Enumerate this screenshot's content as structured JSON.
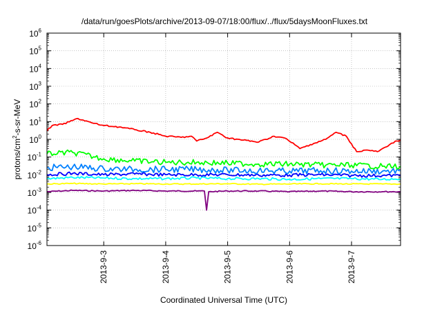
{
  "chart_data": {
    "type": "line",
    "title": "/data/run/goesPlots/archive/2013-09-07/18:00/flux/../flux/5daysMoonFluxes.txt",
    "xlabel": "Coordinated Universal Time (UTC)",
    "ylabel_parts": {
      "a": "protons/cm",
      "b": "2",
      "c": "-s-sr-MeV"
    },
    "x_range": [
      "2013-09-02T02:00",
      "2013-09-07T19:00"
    ],
    "x_ticks": [
      {
        "value": "2013-09-03T00:00",
        "label": "2013-9-3"
      },
      {
        "value": "2013-09-04T00:00",
        "label": "2013-9-4"
      },
      {
        "value": "2013-09-05T00:00",
        "label": "2013-9-5"
      },
      {
        "value": "2013-09-06T00:00",
        "label": "2013-9-6"
      },
      {
        "value": "2013-09-07T00:00",
        "label": "2013-9-7"
      }
    ],
    "y_scale": "log",
    "ylim": [
      1e-06,
      1000000.0
    ],
    "y_ticks": [
      {
        "value": 1e-06,
        "base": "10",
        "exp": "-6"
      },
      {
        "value": 1e-05,
        "base": "10",
        "exp": "-5"
      },
      {
        "value": 0.0001,
        "base": "10",
        "exp": "-4"
      },
      {
        "value": 0.001,
        "base": "10",
        "exp": "-3"
      },
      {
        "value": 0.01,
        "base": "10",
        "exp": "-2"
      },
      {
        "value": 0.1,
        "base": "10",
        "exp": "-1"
      },
      {
        "value": 1,
        "base": "10",
        "exp": "0"
      },
      {
        "value": 10,
        "base": "10",
        "exp": "1"
      },
      {
        "value": 100,
        "base": "10",
        "exp": "2"
      },
      {
        "value": 1000,
        "base": "10",
        "exp": "3"
      },
      {
        "value": 10000,
        "base": "10",
        "exp": "4"
      },
      {
        "value": 100000,
        "base": "10",
        "exp": "5"
      },
      {
        "value": 1000000,
        "base": "10",
        "exp": "6"
      }
    ],
    "grid": true,
    "legend": "none",
    "series": [
      {
        "color": "#800080",
        "points": [
          [
            "2013-09-02T02:00",
            0.0011
          ],
          [
            "2013-09-02T12:00",
            0.0013
          ],
          [
            "2013-09-03T00:00",
            0.0012
          ],
          [
            "2013-09-03T12:00",
            0.0013
          ],
          [
            "2013-09-04T00:00",
            0.0012
          ],
          [
            "2013-09-04T12:00",
            0.0012
          ],
          [
            "2013-09-04T15:00",
            0.0012
          ],
          [
            "2013-09-04T15:50",
            0.0001
          ],
          [
            "2013-09-04T16:40",
            0.0011
          ],
          [
            "2013-09-05T00:00",
            0.0012
          ],
          [
            "2013-09-05T12:00",
            0.0012
          ],
          [
            "2013-09-06T00:00",
            0.0011
          ],
          [
            "2013-09-06T12:00",
            0.0012
          ],
          [
            "2013-09-07T00:00",
            0.0011
          ],
          [
            "2013-09-07T12:00",
            0.0011
          ],
          [
            "2013-09-07T19:00",
            0.0011
          ]
        ]
      },
      {
        "color": "#ffff00",
        "points": [
          [
            "2013-09-02T02:00",
            0.003
          ],
          [
            "2013-09-02T12:00",
            0.0032
          ],
          [
            "2013-09-03T00:00",
            0.003
          ],
          [
            "2013-09-03T12:00",
            0.0031
          ],
          [
            "2013-09-04T00:00",
            0.003
          ],
          [
            "2013-09-04T12:00",
            0.003
          ],
          [
            "2013-09-05T00:00",
            0.0031
          ],
          [
            "2013-09-05T12:00",
            0.0029
          ],
          [
            "2013-09-06T00:00",
            0.003
          ],
          [
            "2013-09-06T12:00",
            0.0031
          ],
          [
            "2013-09-07T00:00",
            0.003
          ],
          [
            "2013-09-07T12:00",
            0.003
          ],
          [
            "2013-09-07T19:00",
            0.003
          ]
        ]
      },
      {
        "color": "#00ffff",
        "points": [
          [
            "2013-09-02T02:00",
            0.006
          ],
          [
            "2013-09-02T12:00",
            0.007
          ],
          [
            "2013-09-03T00:00",
            0.0065
          ],
          [
            "2013-09-03T12:00",
            0.006
          ],
          [
            "2013-09-04T00:00",
            0.006
          ],
          [
            "2013-09-04T12:00",
            0.0065
          ],
          [
            "2013-09-05T00:00",
            0.006
          ],
          [
            "2013-09-05T12:00",
            0.006
          ],
          [
            "2013-09-06T00:00",
            0.0055
          ],
          [
            "2013-09-06T12:00",
            0.006
          ],
          [
            "2013-09-07T00:00",
            0.006
          ],
          [
            "2013-09-07T12:00",
            0.0055
          ],
          [
            "2013-09-07T19:00",
            0.006
          ]
        ]
      },
      {
        "color": "#0000ff",
        "points": [
          [
            "2013-09-02T02:00",
            0.01
          ],
          [
            "2013-09-02T12:00",
            0.012
          ],
          [
            "2013-09-03T00:00",
            0.01
          ],
          [
            "2013-09-03T12:00",
            0.011
          ],
          [
            "2013-09-04T00:00",
            0.01
          ],
          [
            "2013-09-04T12:00",
            0.01
          ],
          [
            "2013-09-05T00:00",
            0.01
          ],
          [
            "2013-09-05T12:00",
            0.0095
          ],
          [
            "2013-09-06T00:00",
            0.0095
          ],
          [
            "2013-09-06T12:00",
            0.01
          ],
          [
            "2013-09-07T00:00",
            0.009
          ],
          [
            "2013-09-07T12:00",
            0.009
          ],
          [
            "2013-09-07T19:00",
            0.009
          ]
        ]
      },
      {
        "color": "#0080ff",
        "points": [
          [
            "2013-09-02T02:00",
            0.025
          ],
          [
            "2013-09-02T12:00",
            0.028
          ],
          [
            "2013-09-03T00:00",
            0.022
          ],
          [
            "2013-09-03T12:00",
            0.02
          ],
          [
            "2013-09-04T00:00",
            0.02
          ],
          [
            "2013-09-04T12:00",
            0.02
          ],
          [
            "2013-09-05T00:00",
            0.018
          ],
          [
            "2013-09-05T12:00",
            0.017
          ],
          [
            "2013-09-06T00:00",
            0.016
          ],
          [
            "2013-09-06T12:00",
            0.017
          ],
          [
            "2013-09-07T00:00",
            0.016
          ],
          [
            "2013-09-07T12:00",
            0.016
          ],
          [
            "2013-09-07T19:00",
            0.017
          ]
        ]
      },
      {
        "color": "#00ff00",
        "points": [
          [
            "2013-09-02T02:00",
            0.15
          ],
          [
            "2013-09-02T12:00",
            0.18
          ],
          [
            "2013-09-03T00:00",
            0.08
          ],
          [
            "2013-09-03T12:00",
            0.06
          ],
          [
            "2013-09-04T00:00",
            0.05
          ],
          [
            "2013-09-04T12:00",
            0.05
          ],
          [
            "2013-09-05T00:00",
            0.045
          ],
          [
            "2013-09-05T12:00",
            0.04
          ],
          [
            "2013-09-06T00:00",
            0.04
          ],
          [
            "2013-09-06T12:00",
            0.035
          ],
          [
            "2013-09-07T00:00",
            0.035
          ],
          [
            "2013-09-07T12:00",
            0.03
          ],
          [
            "2013-09-07T19:00",
            0.03
          ]
        ]
      },
      {
        "color": "#ff0000",
        "points": [
          [
            "2013-09-02T02:00",
            3.0
          ],
          [
            "2013-09-02T04:00",
            6.0
          ],
          [
            "2013-09-02T08:00",
            7.0
          ],
          [
            "2013-09-02T14:00",
            15.0
          ],
          [
            "2013-09-02T20:00",
            8.0
          ],
          [
            "2013-09-03T00:00",
            6.0
          ],
          [
            "2013-09-03T06:00",
            5.0
          ],
          [
            "2013-09-03T12:00",
            3.5
          ],
          [
            "2013-09-03T18:00",
            2.5
          ],
          [
            "2013-09-04T00:00",
            1.5
          ],
          [
            "2013-09-04T06:00",
            1.3
          ],
          [
            "2013-09-04T10:00",
            1.5
          ],
          [
            "2013-09-04T12:00",
            0.8
          ],
          [
            "2013-09-04T16:00",
            1.2
          ],
          [
            "2013-09-04T20:00",
            2.5
          ],
          [
            "2013-09-05T00:00",
            1.2
          ],
          [
            "2013-09-05T06:00",
            0.9
          ],
          [
            "2013-09-05T12:00",
            0.7
          ],
          [
            "2013-09-05T18:00",
            1.5
          ],
          [
            "2013-09-05T22:00",
            1.2
          ],
          [
            "2013-09-06T02:00",
            0.5
          ],
          [
            "2013-09-06T04:00",
            0.3
          ],
          [
            "2013-09-06T08:00",
            0.5
          ],
          [
            "2013-09-06T14:00",
            1.0
          ],
          [
            "2013-09-06T18:00",
            2.5
          ],
          [
            "2013-09-06T22:00",
            1.5
          ],
          [
            "2013-09-07T02:00",
            0.2
          ],
          [
            "2013-09-07T06:00",
            0.25
          ],
          [
            "2013-09-07T10:00",
            0.2
          ],
          [
            "2013-09-07T14:00",
            0.4
          ],
          [
            "2013-09-07T17:00",
            0.8
          ],
          [
            "2013-09-07T19:00",
            0.9
          ]
        ]
      }
    ]
  }
}
